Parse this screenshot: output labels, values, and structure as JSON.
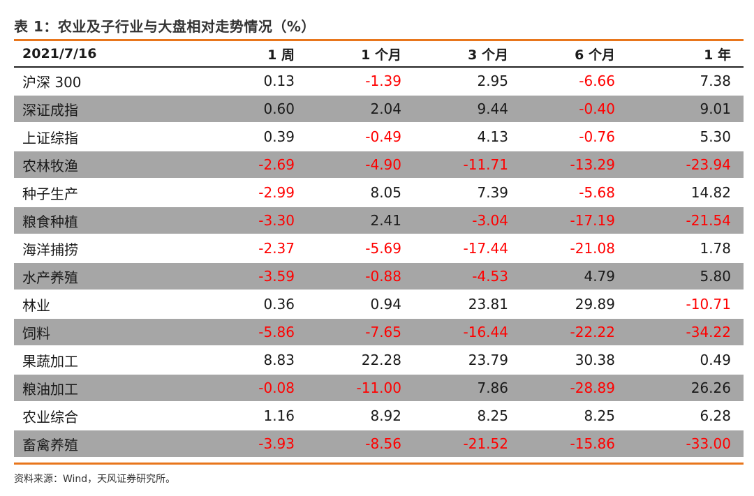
{
  "caption": "表 1：农业及子行业与大盘相对走势情况（%）",
  "columns": [
    "2021/7/16",
    "1 周",
    "1 个月",
    "3 个月",
    "6 个月",
    "1 年"
  ],
  "rows": [
    {
      "name": "沪深 300",
      "values": [
        "0.13",
        "-1.39",
        "2.95",
        "-6.66",
        "7.38"
      ]
    },
    {
      "name": "深证成指",
      "values": [
        "0.60",
        "2.04",
        "9.44",
        "-0.40",
        "9.01"
      ]
    },
    {
      "name": "上证综指",
      "values": [
        "0.39",
        "-0.49",
        "4.13",
        "-0.76",
        "5.30"
      ]
    },
    {
      "name": "农林牧渔",
      "values": [
        "-2.69",
        "-4.90",
        "-11.71",
        "-13.29",
        "-23.94"
      ]
    },
    {
      "name": "种子生产",
      "values": [
        "-2.99",
        "8.05",
        "7.39",
        "-5.68",
        "14.82"
      ]
    },
    {
      "name": "粮食种植",
      "values": [
        "-3.30",
        "2.41",
        "-3.04",
        "-17.19",
        "-21.54"
      ]
    },
    {
      "name": "海洋捕捞",
      "values": [
        "-2.37",
        "-5.69",
        "-17.44",
        "-21.08",
        "1.78"
      ]
    },
    {
      "name": "水产养殖",
      "values": [
        "-3.59",
        "-0.88",
        "-4.53",
        "4.79",
        "5.80"
      ]
    },
    {
      "name": "林业",
      "values": [
        "0.36",
        "0.94",
        "23.81",
        "29.89",
        "-10.71"
      ]
    },
    {
      "name": "饲料",
      "values": [
        "-5.86",
        "-7.65",
        "-16.44",
        "-22.22",
        "-34.22"
      ]
    },
    {
      "name": "果蔬加工",
      "values": [
        "8.83",
        "22.28",
        "23.79",
        "30.38",
        "0.49"
      ]
    },
    {
      "name": "粮油加工",
      "values": [
        "-0.08",
        "-11.00",
        "7.86",
        "-28.89",
        "26.26"
      ]
    },
    {
      "name": "农业综合",
      "values": [
        "1.16",
        "8.92",
        "8.25",
        "8.25",
        "6.28"
      ]
    },
    {
      "name": "畜禽养殖",
      "values": [
        "-3.93",
        "-8.56",
        "-21.52",
        "-15.86",
        "-33.00"
      ]
    }
  ],
  "source": "资料来源：Wind，天风证券研究所。",
  "colors": {
    "accent_rule": "#e8761c",
    "shaded_row": "#a6a6a6",
    "negative": "#ff0000",
    "text": "#1a1a1a"
  }
}
